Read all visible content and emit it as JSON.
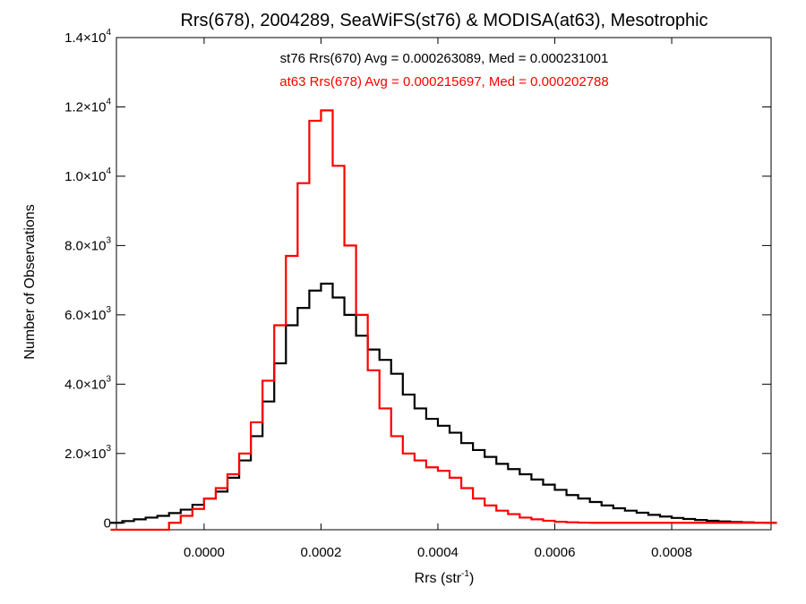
{
  "chart_data": {
    "type": "line",
    "title": "Rrs(678), 2004289, SeaWiFS(st76) & MODISA(at63), Mesotrophic",
    "xlabel": "Rrs (str",
    "xlabel_sup": "-1",
    "xlabel_close": ")",
    "ylabel": "Number of Observations",
    "xlim": [
      -0.00015,
      0.00097
    ],
    "ylim": [
      -200,
      14000
    ],
    "x_ticks": [
      {
        "value": 0.0,
        "label": "0.0000"
      },
      {
        "value": 0.0002,
        "label": "0.0002"
      },
      {
        "value": 0.0004,
        "label": "0.0004"
      },
      {
        "value": 0.0006,
        "label": "0.0006"
      },
      {
        "value": 0.0008,
        "label": "0.0008"
      }
    ],
    "y_ticks": [
      {
        "value": 0,
        "mant": "0",
        "exp": ""
      },
      {
        "value": 2000,
        "mant": "2.0×10",
        "exp": "3"
      },
      {
        "value": 4000,
        "mant": "4.0×10",
        "exp": "3"
      },
      {
        "value": 6000,
        "mant": "6.0×10",
        "exp": "3"
      },
      {
        "value": 8000,
        "mant": "8.0×10",
        "exp": "3"
      },
      {
        "value": 10000,
        "mant": "1.0×10",
        "exp": "4"
      },
      {
        "value": 12000,
        "mant": "1.2×10",
        "exp": "4"
      },
      {
        "value": 14000,
        "mant": "1.4×10",
        "exp": "4"
      }
    ],
    "series": [
      {
        "name": "st76 Rrs(670) Avg = 0.000263089, Med = 0.000231001",
        "color": "#000000",
        "x": [
          -0.00015,
          -0.00013,
          -0.00011,
          -9e-05,
          -7e-05,
          -5e-05,
          -3e-05,
          -1e-05,
          1e-05,
          3e-05,
          5e-05,
          7e-05,
          9e-05,
          0.00011,
          0.00013,
          0.00015,
          0.00017,
          0.00019,
          0.00021,
          0.00023,
          0.00025,
          0.00027,
          0.00029,
          0.00031,
          0.00033,
          0.00035,
          0.00037,
          0.00039,
          0.00041,
          0.00043,
          0.00045,
          0.00047,
          0.00049,
          0.00051,
          0.00053,
          0.00055,
          0.00057,
          0.00059,
          0.00061,
          0.00063,
          0.00065,
          0.00067,
          0.00069,
          0.00071,
          0.00073,
          0.00075,
          0.00077,
          0.00079,
          0.00081,
          0.00083,
          0.00085,
          0.00087,
          0.00089,
          0.00091,
          0.00093,
          0.00095,
          0.00097
        ],
        "values": [
          0,
          50,
          100,
          150,
          200,
          280,
          380,
          520,
          700,
          900,
          1300,
          1800,
          2500,
          3500,
          4600,
          5700,
          6200,
          6700,
          6900,
          6500,
          6000,
          5400,
          5000,
          4700,
          4300,
          3700,
          3300,
          3000,
          2800,
          2600,
          2300,
          2100,
          1900,
          1700,
          1550,
          1400,
          1250,
          1100,
          950,
          800,
          700,
          600,
          500,
          420,
          350,
          290,
          230,
          180,
          140,
          110,
          80,
          60,
          40,
          25,
          15,
          5,
          0
        ]
      },
      {
        "name": "at63 Rrs(678) Avg = 0.000215697, Med = 0.000202788",
        "color": "#ff0000",
        "x": [
          -0.00015,
          -0.00013,
          -0.00011,
          -9e-05,
          -7e-05,
          -5e-05,
          -3e-05,
          -1e-05,
          1e-05,
          3e-05,
          5e-05,
          7e-05,
          9e-05,
          0.00011,
          0.00013,
          0.00015,
          0.00017,
          0.00019,
          0.00021,
          0.00023,
          0.00025,
          0.00027,
          0.00029,
          0.00031,
          0.00033,
          0.00035,
          0.00037,
          0.00039,
          0.00041,
          0.00043,
          0.00045,
          0.00047,
          0.00049,
          0.00051,
          0.00053,
          0.00055,
          0.00057,
          0.00059,
          0.00061,
          0.00063,
          0.00065,
          0.00067,
          0.00069,
          0.00071,
          0.00073,
          0.00075,
          0.00077,
          0.00079,
          0.00081,
          0.00083,
          0.00085,
          0.00087,
          0.00089,
          0.00091,
          0.00093,
          0.00095,
          0.00097
        ],
        "values": [
          -200,
          -200,
          -200,
          -200,
          -200,
          0,
          200,
          400,
          700,
          1000,
          1400,
          2000,
          2900,
          4100,
          5700,
          7700,
          9800,
          11600,
          11900,
          10300,
          8000,
          6000,
          4400,
          3300,
          2500,
          2000,
          1800,
          1600,
          1500,
          1300,
          1000,
          700,
          500,
          350,
          250,
          150,
          100,
          60,
          30,
          15,
          5,
          0,
          0,
          0,
          0,
          0,
          0,
          0,
          0,
          0,
          0,
          0,
          0,
          0,
          0,
          0,
          0
        ]
      }
    ]
  }
}
